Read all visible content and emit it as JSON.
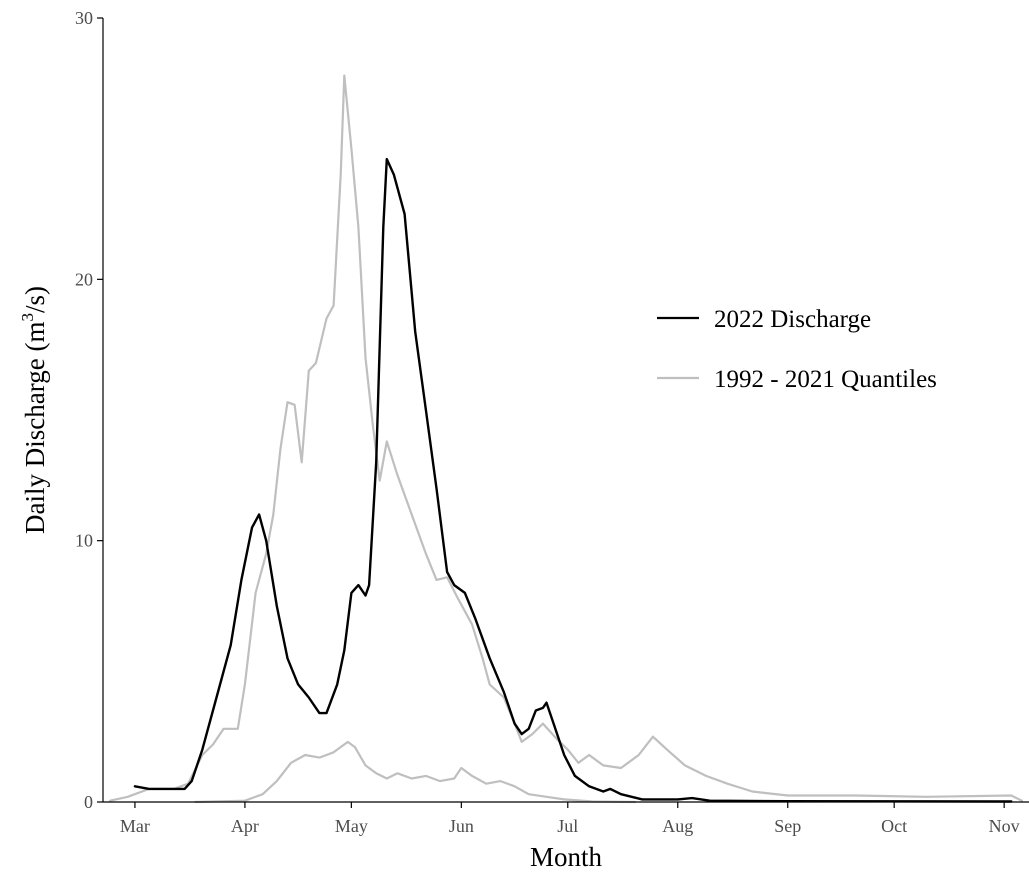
{
  "chart_data": {
    "type": "line",
    "xlabel": "Month",
    "ylabel": "Daily Discharge (m³/s)",
    "ylabel_parts": {
      "before": "Daily Discharge (m",
      "sup": "3",
      "after": "/s)"
    },
    "ylim": [
      0,
      30
    ],
    "yticks": [
      0,
      10,
      20,
      30
    ],
    "xlim": [
      "2022-02-20",
      "2022-11-08"
    ],
    "xticks": [
      {
        "label": "Mar",
        "date": "2022-03-01"
      },
      {
        "label": "Apr",
        "date": "2022-04-01"
      },
      {
        "label": "May",
        "date": "2022-05-01"
      },
      {
        "label": "Jun",
        "date": "2022-06-01"
      },
      {
        "label": "Jul",
        "date": "2022-07-01"
      },
      {
        "label": "Aug",
        "date": "2022-08-01"
      },
      {
        "label": "Sep",
        "date": "2022-09-01"
      },
      {
        "label": "Oct",
        "date": "2022-10-01"
      },
      {
        "label": "Nov",
        "date": "2022-11-01"
      }
    ],
    "grid": false,
    "legend_position": "right",
    "series": [
      {
        "name": "2022 Discharge",
        "color": "#000000",
        "points": [
          [
            "2022-03-01",
            0.6
          ],
          [
            "2022-03-05",
            0.5
          ],
          [
            "2022-03-15",
            0.5
          ],
          [
            "2022-03-17",
            0.8
          ],
          [
            "2022-03-20",
            2.0
          ],
          [
            "2022-03-24",
            4.0
          ],
          [
            "2022-03-28",
            6.0
          ],
          [
            "2022-03-31",
            8.5
          ],
          [
            "2022-04-03",
            10.5
          ],
          [
            "2022-04-05",
            11.0
          ],
          [
            "2022-04-07",
            10.0
          ],
          [
            "2022-04-10",
            7.5
          ],
          [
            "2022-04-13",
            5.5
          ],
          [
            "2022-04-16",
            4.5
          ],
          [
            "2022-04-19",
            4.0
          ],
          [
            "2022-04-22",
            3.4
          ],
          [
            "2022-04-24",
            3.4
          ],
          [
            "2022-04-27",
            4.5
          ],
          [
            "2022-04-29",
            5.8
          ],
          [
            "2022-05-01",
            8.0
          ],
          [
            "2022-05-03",
            8.3
          ],
          [
            "2022-05-05",
            7.9
          ],
          [
            "2022-05-06",
            8.3
          ],
          [
            "2022-05-08",
            13.0
          ],
          [
            "2022-05-10",
            22.0
          ],
          [
            "2022-05-11",
            24.6
          ],
          [
            "2022-05-13",
            24.0
          ],
          [
            "2022-05-16",
            22.5
          ],
          [
            "2022-05-19",
            18.0
          ],
          [
            "2022-05-22",
            15.0
          ],
          [
            "2022-05-25",
            12.0
          ],
          [
            "2022-05-28",
            8.8
          ],
          [
            "2022-05-30",
            8.3
          ],
          [
            "2022-06-02",
            8.0
          ],
          [
            "2022-06-05",
            7.0
          ],
          [
            "2022-06-09",
            5.5
          ],
          [
            "2022-06-13",
            4.2
          ],
          [
            "2022-06-16",
            3.0
          ],
          [
            "2022-06-18",
            2.6
          ],
          [
            "2022-06-20",
            2.8
          ],
          [
            "2022-06-22",
            3.5
          ],
          [
            "2022-06-24",
            3.6
          ],
          [
            "2022-06-25",
            3.8
          ],
          [
            "2022-06-27",
            3.0
          ],
          [
            "2022-06-30",
            1.8
          ],
          [
            "2022-07-03",
            1.0
          ],
          [
            "2022-07-07",
            0.6
          ],
          [
            "2022-07-11",
            0.4
          ],
          [
            "2022-07-13",
            0.5
          ],
          [
            "2022-07-16",
            0.3
          ],
          [
            "2022-07-22",
            0.1
          ],
          [
            "2022-08-01",
            0.1
          ],
          [
            "2022-08-05",
            0.15
          ],
          [
            "2022-08-10",
            0.05
          ],
          [
            "2022-09-01",
            0.03
          ],
          [
            "2022-11-03",
            0.02
          ]
        ]
      },
      {
        "name": "1992 - 2021 Quantiles",
        "color": "#bfbfbf",
        "points": [
          [
            "2022-02-22",
            0.05
          ],
          [
            "2022-02-27",
            0.2
          ],
          [
            "2022-03-05",
            0.5
          ],
          [
            "2022-03-12",
            0.5
          ],
          [
            "2022-03-16",
            0.7
          ],
          [
            "2022-03-20",
            1.8
          ],
          [
            "2022-03-23",
            2.2
          ],
          [
            "2022-03-26",
            2.8
          ],
          [
            "2022-03-30",
            2.8
          ],
          [
            "2022-04-01",
            4.5
          ],
          [
            "2022-04-04",
            8.0
          ],
          [
            "2022-04-07",
            9.5
          ],
          [
            "2022-04-09",
            11.0
          ],
          [
            "2022-04-11",
            13.5
          ],
          [
            "2022-04-13",
            15.3
          ],
          [
            "2022-04-15",
            15.2
          ],
          [
            "2022-04-17",
            13.0
          ],
          [
            "2022-04-19",
            16.5
          ],
          [
            "2022-04-21",
            16.8
          ],
          [
            "2022-04-24",
            18.5
          ],
          [
            "2022-04-26",
            19.0
          ],
          [
            "2022-04-28",
            24.0
          ],
          [
            "2022-04-29",
            27.8
          ],
          [
            "2022-05-01",
            25.0
          ],
          [
            "2022-05-03",
            22.0
          ],
          [
            "2022-05-05",
            17.0
          ],
          [
            "2022-05-07",
            14.5
          ],
          [
            "2022-05-09",
            12.3
          ],
          [
            "2022-05-11",
            13.8
          ],
          [
            "2022-05-14",
            12.5
          ],
          [
            "2022-05-18",
            11.0
          ],
          [
            "2022-05-22",
            9.5
          ],
          [
            "2022-05-25",
            8.5
          ],
          [
            "2022-05-28",
            8.6
          ],
          [
            "2022-05-31",
            7.8
          ],
          [
            "2022-06-04",
            6.8
          ],
          [
            "2022-06-07",
            5.5
          ],
          [
            "2022-06-09",
            4.5
          ],
          [
            "2022-06-13",
            4.0
          ],
          [
            "2022-06-16",
            3.0
          ],
          [
            "2022-06-18",
            2.3
          ],
          [
            "2022-06-21",
            2.6
          ],
          [
            "2022-06-24",
            3.0
          ],
          [
            "2022-06-28",
            2.4
          ],
          [
            "2022-07-01",
            2.0
          ],
          [
            "2022-07-04",
            1.5
          ],
          [
            "2022-07-07",
            1.8
          ],
          [
            "2022-07-11",
            1.4
          ],
          [
            "2022-07-16",
            1.3
          ],
          [
            "2022-07-21",
            1.8
          ],
          [
            "2022-07-25",
            2.5
          ],
          [
            "2022-07-29",
            2.0
          ],
          [
            "2022-08-03",
            1.4
          ],
          [
            "2022-08-09",
            1.0
          ],
          [
            "2022-08-15",
            0.7
          ],
          [
            "2022-08-22",
            0.4
          ],
          [
            "2022-09-01",
            0.25
          ],
          [
            "2022-09-20",
            0.25
          ],
          [
            "2022-10-10",
            0.2
          ],
          [
            "2022-11-03",
            0.25
          ],
          [
            "2022-11-06",
            0.05
          ]
        ]
      },
      {
        "name": "",
        "color": "#bfbfbf",
        "points": [
          [
            "2022-03-18",
            0.0
          ],
          [
            "2022-04-01",
            0.05
          ],
          [
            "2022-04-06",
            0.3
          ],
          [
            "2022-04-10",
            0.8
          ],
          [
            "2022-04-14",
            1.5
          ],
          [
            "2022-04-18",
            1.8
          ],
          [
            "2022-04-22",
            1.7
          ],
          [
            "2022-04-26",
            1.9
          ],
          [
            "2022-04-30",
            2.3
          ],
          [
            "2022-05-02",
            2.1
          ],
          [
            "2022-05-05",
            1.4
          ],
          [
            "2022-05-08",
            1.1
          ],
          [
            "2022-05-11",
            0.9
          ],
          [
            "2022-05-14",
            1.1
          ],
          [
            "2022-05-18",
            0.9
          ],
          [
            "2022-05-22",
            1.0
          ],
          [
            "2022-05-26",
            0.8
          ],
          [
            "2022-05-30",
            0.9
          ],
          [
            "2022-06-01",
            1.3
          ],
          [
            "2022-06-04",
            1.0
          ],
          [
            "2022-06-08",
            0.7
          ],
          [
            "2022-06-12",
            0.8
          ],
          [
            "2022-06-16",
            0.6
          ],
          [
            "2022-06-20",
            0.3
          ],
          [
            "2022-06-25",
            0.2
          ],
          [
            "2022-06-30",
            0.1
          ],
          [
            "2022-07-08",
            0.02
          ],
          [
            "2022-07-20",
            0.0
          ]
        ]
      }
    ]
  }
}
